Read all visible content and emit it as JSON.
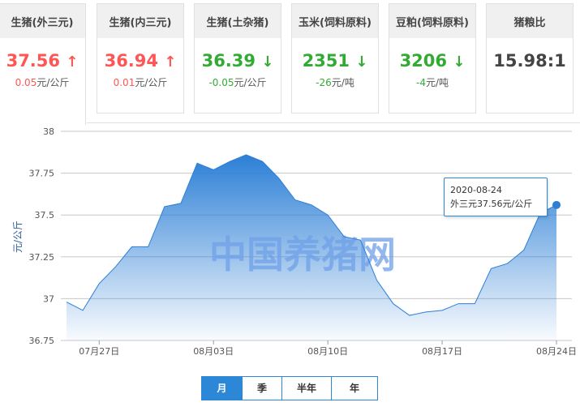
{
  "cards": [
    {
      "title": "生猪(外三元)",
      "value": "37.56",
      "trend": "up",
      "change": "0.05",
      "unit": "元/公斤"
    },
    {
      "title": "生猪(内三元)",
      "value": "36.94",
      "trend": "up",
      "change": "0.01",
      "unit": "元/公斤"
    },
    {
      "title": "生猪(土杂猪)",
      "value": "36.39",
      "trend": "down",
      "change": "-0.05",
      "unit": "元/公斤"
    },
    {
      "title": "玉米(饲料原料)",
      "value": "2351",
      "trend": "down",
      "change": "-26",
      "unit": "元/吨"
    },
    {
      "title": "豆粕(饲料原料)",
      "value": "3206",
      "trend": "down",
      "change": "-4",
      "unit": "元/吨"
    },
    {
      "title": "猪粮比",
      "value": "15.98:1",
      "trend": "none",
      "change": "",
      "unit": ""
    }
  ],
  "colors": {
    "up": "#ff5555",
    "down": "#33aa33",
    "series": "#2c7fd6"
  },
  "watermark": "中国养猪网",
  "tooltip": {
    "date": "2020-08-24",
    "text": "外三元37.56元/公斤"
  },
  "range_buttons": [
    {
      "label": "月",
      "active": true
    },
    {
      "label": "季"
    },
    {
      "label": "半年"
    },
    {
      "label": "年"
    }
  ],
  "chart_data": {
    "type": "area",
    "ylabel": "元/公斤",
    "ylim": [
      36.75,
      38
    ],
    "yticks": [
      "38",
      "37.75",
      "37.5",
      "37.25",
      "37",
      "36.75"
    ],
    "xticks": [
      "07月27日",
      "08月03日",
      "08月10日",
      "08月17日",
      "08月24日"
    ],
    "grid": true,
    "x_start": "2020-07-25",
    "x": [
      "07-25",
      "07-26",
      "07-27",
      "07-28",
      "07-29",
      "07-30",
      "07-31",
      "08-01",
      "08-02",
      "08-03",
      "08-04",
      "08-05",
      "08-06",
      "08-07",
      "08-08",
      "08-09",
      "08-10",
      "08-11",
      "08-12",
      "08-13",
      "08-14",
      "08-15",
      "08-16",
      "08-17",
      "08-18",
      "08-19",
      "08-20",
      "08-21",
      "08-22",
      "08-23",
      "08-24"
    ],
    "values": [
      36.98,
      36.93,
      37.09,
      37.19,
      37.31,
      37.31,
      37.55,
      37.57,
      37.81,
      37.77,
      37.82,
      37.86,
      37.82,
      37.72,
      37.59,
      37.56,
      37.5,
      37.37,
      37.35,
      37.11,
      36.97,
      36.9,
      36.92,
      36.93,
      36.97,
      36.97,
      37.18,
      37.21,
      37.29,
      37.51,
      37.56
    ]
  }
}
